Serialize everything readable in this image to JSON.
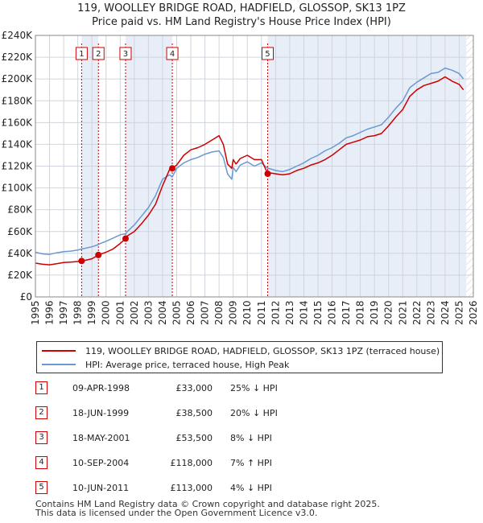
{
  "title_line1": "119, WOOLLEY BRIDGE ROAD, HADFIELD, GLOSSOP, SK13 1PZ",
  "title_line2": "Price paid vs. HM Land Registry's House Price Index (HPI)",
  "legend": {
    "series1": "119, WOOLLEY BRIDGE ROAD, HADFIELD, GLOSSOP, SK13 1PZ (terraced house)",
    "series2": "HPI: Average price, terraced house, High Peak"
  },
  "colors": {
    "price": "#cc0000",
    "hpi": "#6a99d0",
    "shade": "#e8eef8",
    "grid": "#cfd4dc"
  },
  "sales": [
    {
      "num": "1",
      "date": "09-APR-1998",
      "price": "£33,000",
      "pct": "25% ↓ HPI"
    },
    {
      "num": "2",
      "date": "18-JUN-1999",
      "price": "£38,500",
      "pct": "20% ↓ HPI"
    },
    {
      "num": "3",
      "date": "18-MAY-2001",
      "price": "£53,500",
      "pct": "8% ↓ HPI"
    },
    {
      "num": "4",
      "date": "10-SEP-2004",
      "price": "£118,000",
      "pct": "7% ↑ HPI"
    },
    {
      "num": "5",
      "date": "10-JUN-2011",
      "price": "£113,000",
      "pct": "4% ↓ HPI"
    }
  ],
  "footer_line1": "Contains HM Land Registry data © Crown copyright and database right 2025.",
  "footer_line2": "This data is licensed under the Open Government Licence v3.0.",
  "chart_data": {
    "type": "line",
    "title": "Price paid vs. HM Land Registry's House Price Index (HPI)",
    "xlim": [
      1995,
      2026
    ],
    "ylim": [
      0,
      240000
    ],
    "x_ticks": [
      1995,
      1996,
      1997,
      1998,
      1999,
      2000,
      2001,
      2002,
      2003,
      2004,
      2005,
      2006,
      2007,
      2008,
      2009,
      2010,
      2011,
      2012,
      2013,
      2014,
      2015,
      2016,
      2017,
      2018,
      2019,
      2020,
      2021,
      2022,
      2023,
      2024,
      2025,
      2026
    ],
    "y_ticks": [
      0,
      20000,
      40000,
      60000,
      80000,
      100000,
      120000,
      140000,
      160000,
      180000,
      200000,
      220000,
      240000
    ],
    "y_tick_labels": [
      "£0",
      "£20K",
      "£40K",
      "£60K",
      "£80K",
      "£100K",
      "£120K",
      "£140K",
      "£160K",
      "£180K",
      "£200K",
      "£220K",
      "£240K"
    ],
    "sale_points": [
      {
        "label": "1",
        "x": 1998.27,
        "y": 33000
      },
      {
        "label": "2",
        "x": 1999.46,
        "y": 38500
      },
      {
        "label": "3",
        "x": 2001.38,
        "y": 53500
      },
      {
        "label": "4",
        "x": 2004.69,
        "y": 118000
      },
      {
        "label": "5",
        "x": 2011.44,
        "y": 113000
      }
    ],
    "series": [
      {
        "name": "HPI: Average price, terraced house, High Peak",
        "x": [
          1995,
          1995.5,
          1996,
          1996.5,
          1997,
          1997.5,
          1998,
          1998.27,
          1998.5,
          1999,
          1999.46,
          1999.5,
          2000,
          2000.5,
          2001,
          2001.38,
          2001.5,
          2002,
          2002.5,
          2003,
          2003.5,
          2004,
          2004.5,
          2004.69,
          2005,
          2005.5,
          2006,
          2006.5,
          2007,
          2007.5,
          2008,
          2008.3,
          2008.6,
          2008.9,
          2009,
          2009.2,
          2009.5,
          2010,
          2010.5,
          2011,
          2011.44,
          2011.5,
          2012,
          2012.5,
          2013,
          2013.5,
          2014,
          2014.5,
          2015,
          2015.5,
          2016,
          2016.5,
          2017,
          2017.5,
          2018,
          2018.5,
          2019,
          2019.5,
          2020,
          2020.5,
          2021,
          2021.5,
          2022,
          2022.5,
          2023,
          2023.5,
          2024,
          2024.5,
          2025,
          2025.3
        ],
        "values": [
          41000,
          39500,
          39000,
          40500,
          41500,
          42000,
          43000,
          44000,
          44500,
          46000,
          48000,
          48500,
          51000,
          54000,
          57000,
          58000,
          60000,
          66000,
          74000,
          82000,
          93000,
          108000,
          112000,
          110000,
          118000,
          123000,
          126000,
          128000,
          131000,
          133000,
          134000,
          128000,
          113000,
          108000,
          119000,
          115000,
          121000,
          124000,
          120000,
          123000,
          118000,
          118000,
          116000,
          115000,
          117000,
          120000,
          123000,
          127000,
          130000,
          134000,
          137000,
          141000,
          146000,
          148000,
          151000,
          154000,
          156000,
          158000,
          165000,
          173000,
          180000,
          192000,
          197000,
          201000,
          205000,
          206000,
          210000,
          208000,
          205000,
          200000
        ]
      },
      {
        "name": "119, WOOLLEY BRIDGE ROAD, HADFIELD, GLOSSOP, SK13 1PZ (terraced house)",
        "x": [
          1995,
          1995.5,
          1996,
          1996.5,
          1997,
          1997.5,
          1998,
          1998.27,
          1998.5,
          1999,
          1999.46,
          1999.5,
          2000,
          2000.5,
          2001,
          2001.38,
          2001.5,
          2002,
          2002.5,
          2003,
          2003.5,
          2004,
          2004.5,
          2004.69,
          2005,
          2005.5,
          2006,
          2006.5,
          2007,
          2007.5,
          2008,
          2008.3,
          2008.6,
          2008.9,
          2009,
          2009.2,
          2009.5,
          2010,
          2010.5,
          2011,
          2011.44,
          2011.5,
          2012,
          2012.5,
          2013,
          2013.5,
          2014,
          2014.5,
          2015,
          2015.5,
          2016,
          2016.5,
          2017,
          2017.5,
          2018,
          2018.5,
          2019,
          2019.5,
          2020,
          2020.5,
          2021,
          2021.5,
          2022,
          2022.5,
          2023,
          2023.5,
          2024,
          2024.5,
          2025,
          2025.3
        ],
        "values": [
          31000,
          30000,
          29500,
          30500,
          31500,
          32000,
          32500,
          33000,
          33500,
          35000,
          38500,
          38800,
          41000,
          44000,
          49000,
          53500,
          56000,
          60000,
          67000,
          75000,
          85000,
          102000,
          117000,
          118000,
          121000,
          130000,
          135000,
          137000,
          140000,
          144000,
          148000,
          140000,
          122000,
          118000,
          126000,
          122000,
          127000,
          130000,
          126000,
          126000,
          113000,
          114000,
          113000,
          112000,
          113000,
          116000,
          118000,
          121000,
          123000,
          126000,
          130000,
          135000,
          140000,
          142000,
          144000,
          147000,
          148000,
          150000,
          157000,
          165000,
          172000,
          184000,
          190000,
          194000,
          196000,
          198000,
          202000,
          198000,
          195000,
          190000
        ]
      }
    ]
  }
}
